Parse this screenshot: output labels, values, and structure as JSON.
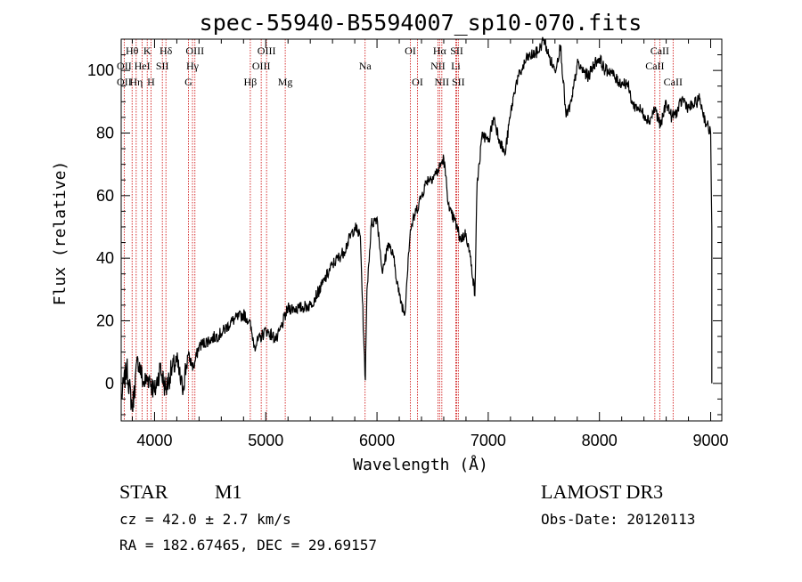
{
  "chart_data": {
    "type": "line",
    "title": "spec-55940-B5594007_sp10-070.fits",
    "xlabel": "Wavelength (Å)",
    "ylabel": "Flux (relative)",
    "xlim": [
      3700,
      9100
    ],
    "ylim": [
      -12,
      110
    ],
    "xticks": [
      4000,
      5000,
      6000,
      7000,
      8000,
      9000
    ],
    "yticks": [
      0,
      20,
      40,
      60,
      80,
      100
    ],
    "line_color": "#cc0000",
    "series": [
      {
        "name": "flux",
        "x": [
          3700,
          3750,
          3800,
          3850,
          3900,
          3950,
          4000,
          4050,
          4100,
          4150,
          4200,
          4250,
          4300,
          4350,
          4400,
          4500,
          4600,
          4700,
          4800,
          4850,
          4900,
          5000,
          5100,
          5200,
          5300,
          5400,
          5500,
          5600,
          5700,
          5800,
          5850,
          5880,
          5895,
          5910,
          5950,
          6000,
          6050,
          6100,
          6150,
          6200,
          6250,
          6280,
          6300,
          6350,
          6400,
          6450,
          6500,
          6550,
          6600,
          6650,
          6700,
          6750,
          6800,
          6850,
          6880,
          6900,
          6950,
          7000,
          7050,
          7100,
          7150,
          7200,
          7250,
          7300,
          7350,
          7400,
          7450,
          7500,
          7550,
          7600,
          7650,
          7700,
          7750,
          7800,
          7850,
          7900,
          7950,
          8000,
          8050,
          8100,
          8150,
          8200,
          8250,
          8300,
          8350,
          8400,
          8450,
          8500,
          8550,
          8600,
          8650,
          8700,
          8750,
          8800,
          8850,
          8900,
          8950,
          9000,
          9010,
          9010
        ],
        "y": [
          -5,
          5,
          -8,
          8,
          0,
          2,
          -3,
          5,
          -2,
          4,
          7,
          -2,
          9,
          5,
          12,
          14,
          16,
          20,
          22,
          20,
          12,
          17,
          14,
          24,
          24,
          25,
          31,
          38,
          42,
          50,
          47,
          15,
          1,
          30,
          51,
          53,
          35,
          45,
          40,
          28,
          22,
          40,
          49,
          55,
          60,
          65,
          66,
          68,
          72,
          55,
          52,
          46,
          48,
          38,
          28,
          64,
          80,
          77,
          85,
          78,
          73,
          86,
          96,
          100,
          104,
          105,
          106,
          110,
          104,
          100,
          108,
          85,
          90,
          102,
          100,
          98,
          102,
          104,
          100,
          100,
          97,
          96,
          96,
          89,
          88,
          86,
          84,
          88,
          82,
          90,
          85,
          87,
          91,
          88,
          89,
          91,
          84,
          80,
          50,
          0
        ]
      }
    ],
    "emission_lines": [
      {
        "label": "Hθ",
        "wave": 3798,
        "row": 0
      },
      {
        "label": "OII",
        "wave": 3727,
        "row": 1
      },
      {
        "label": "OII",
        "wave": 3727,
        "row": 2
      },
      {
        "label": "K",
        "wave": 3934,
        "row": 0
      },
      {
        "label": "Hη",
        "wave": 3835,
        "row": 2
      },
      {
        "label": "HeI",
        "wave": 3889,
        "row": 1
      },
      {
        "label": "H",
        "wave": 3968,
        "row": 2
      },
      {
        "label": "SII",
        "wave": 4070,
        "row": 1
      },
      {
        "label": "Hδ",
        "wave": 4102,
        "row": 0
      },
      {
        "label": "OIII",
        "wave": 4363,
        "row": 0
      },
      {
        "label": "Hγ",
        "wave": 4341,
        "row": 1
      },
      {
        "label": "G",
        "wave": 4305,
        "row": 2
      },
      {
        "label": "Hβ",
        "wave": 4861,
        "row": 2
      },
      {
        "label": "OIII",
        "wave": 5007,
        "row": 0
      },
      {
        "label": "OIII",
        "wave": 4959,
        "row": 1
      },
      {
        "label": "Mg",
        "wave": 5175,
        "row": 2
      },
      {
        "label": "Na",
        "wave": 5893,
        "row": 1
      },
      {
        "label": "OI",
        "wave": 6300,
        "row": 0
      },
      {
        "label": "OI",
        "wave": 6364,
        "row": 2
      },
      {
        "label": "Hα",
        "wave": 6563,
        "row": 0
      },
      {
        "label": "NII",
        "wave": 6548,
        "row": 1
      },
      {
        "label": "NII",
        "wave": 6583,
        "row": 2
      },
      {
        "label": "SII",
        "wave": 6717,
        "row": 0
      },
      {
        "label": "Li",
        "wave": 6708,
        "row": 1
      },
      {
        "label": "SII",
        "wave": 6731,
        "row": 2
      },
      {
        "label": "CaII",
        "wave": 8542,
        "row": 0
      },
      {
        "label": "CaII",
        "wave": 8498,
        "row": 1
      },
      {
        "label": "CaII",
        "wave": 8662,
        "row": 2
      }
    ]
  },
  "info": {
    "object_class": "STAR",
    "subclass": "M1",
    "survey": "LAMOST DR3",
    "redshift": "cz = 42.0 ± 2.7 km/s",
    "obs_date": "Obs-Date: 20120113",
    "coords": "RA = 182.67465, DEC =  29.69157"
  }
}
